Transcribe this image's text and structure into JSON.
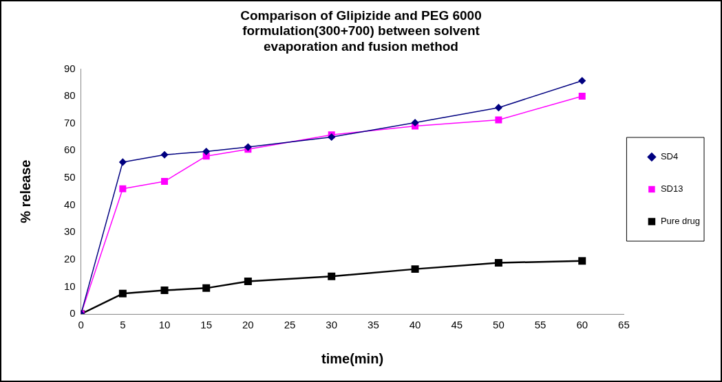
{
  "chart_data": {
    "type": "line",
    "title": "Comparison of Glipizide and PEG 6000\nformulation(300+700) between solvent\nevaporation and fusion method",
    "xlabel": "time(min)",
    "ylabel": "% release",
    "x": [
      0,
      5,
      10,
      15,
      20,
      30,
      40,
      50,
      60
    ],
    "series": [
      {
        "name": "SD4",
        "color": "#000080",
        "marker": "diamond",
        "values": [
          0,
          55.8,
          58.5,
          59.7,
          61.3,
          65,
          70.3,
          75.8,
          85.7
        ]
      },
      {
        "name": "SD13",
        "color": "#ff00ff",
        "marker": "square",
        "values": [
          0,
          46,
          48.7,
          58,
          60.5,
          65.8,
          69,
          71.3,
          80
        ]
      },
      {
        "name": "Pure drug",
        "color": "#000000",
        "marker": "square",
        "values": [
          0,
          7.5,
          8.7,
          9.5,
          12,
          13.8,
          16.5,
          18.8,
          19.5
        ]
      }
    ],
    "xlim": [
      0,
      65
    ],
    "xticks": [
      0,
      5,
      10,
      15,
      20,
      25,
      30,
      35,
      40,
      45,
      50,
      55,
      60,
      65
    ],
    "ylim": [
      0,
      90
    ],
    "yticks": [
      0,
      10,
      20,
      30,
      40,
      50,
      60,
      70,
      80,
      90
    ],
    "grid": false,
    "legend": "right",
    "line_style": "solid"
  }
}
